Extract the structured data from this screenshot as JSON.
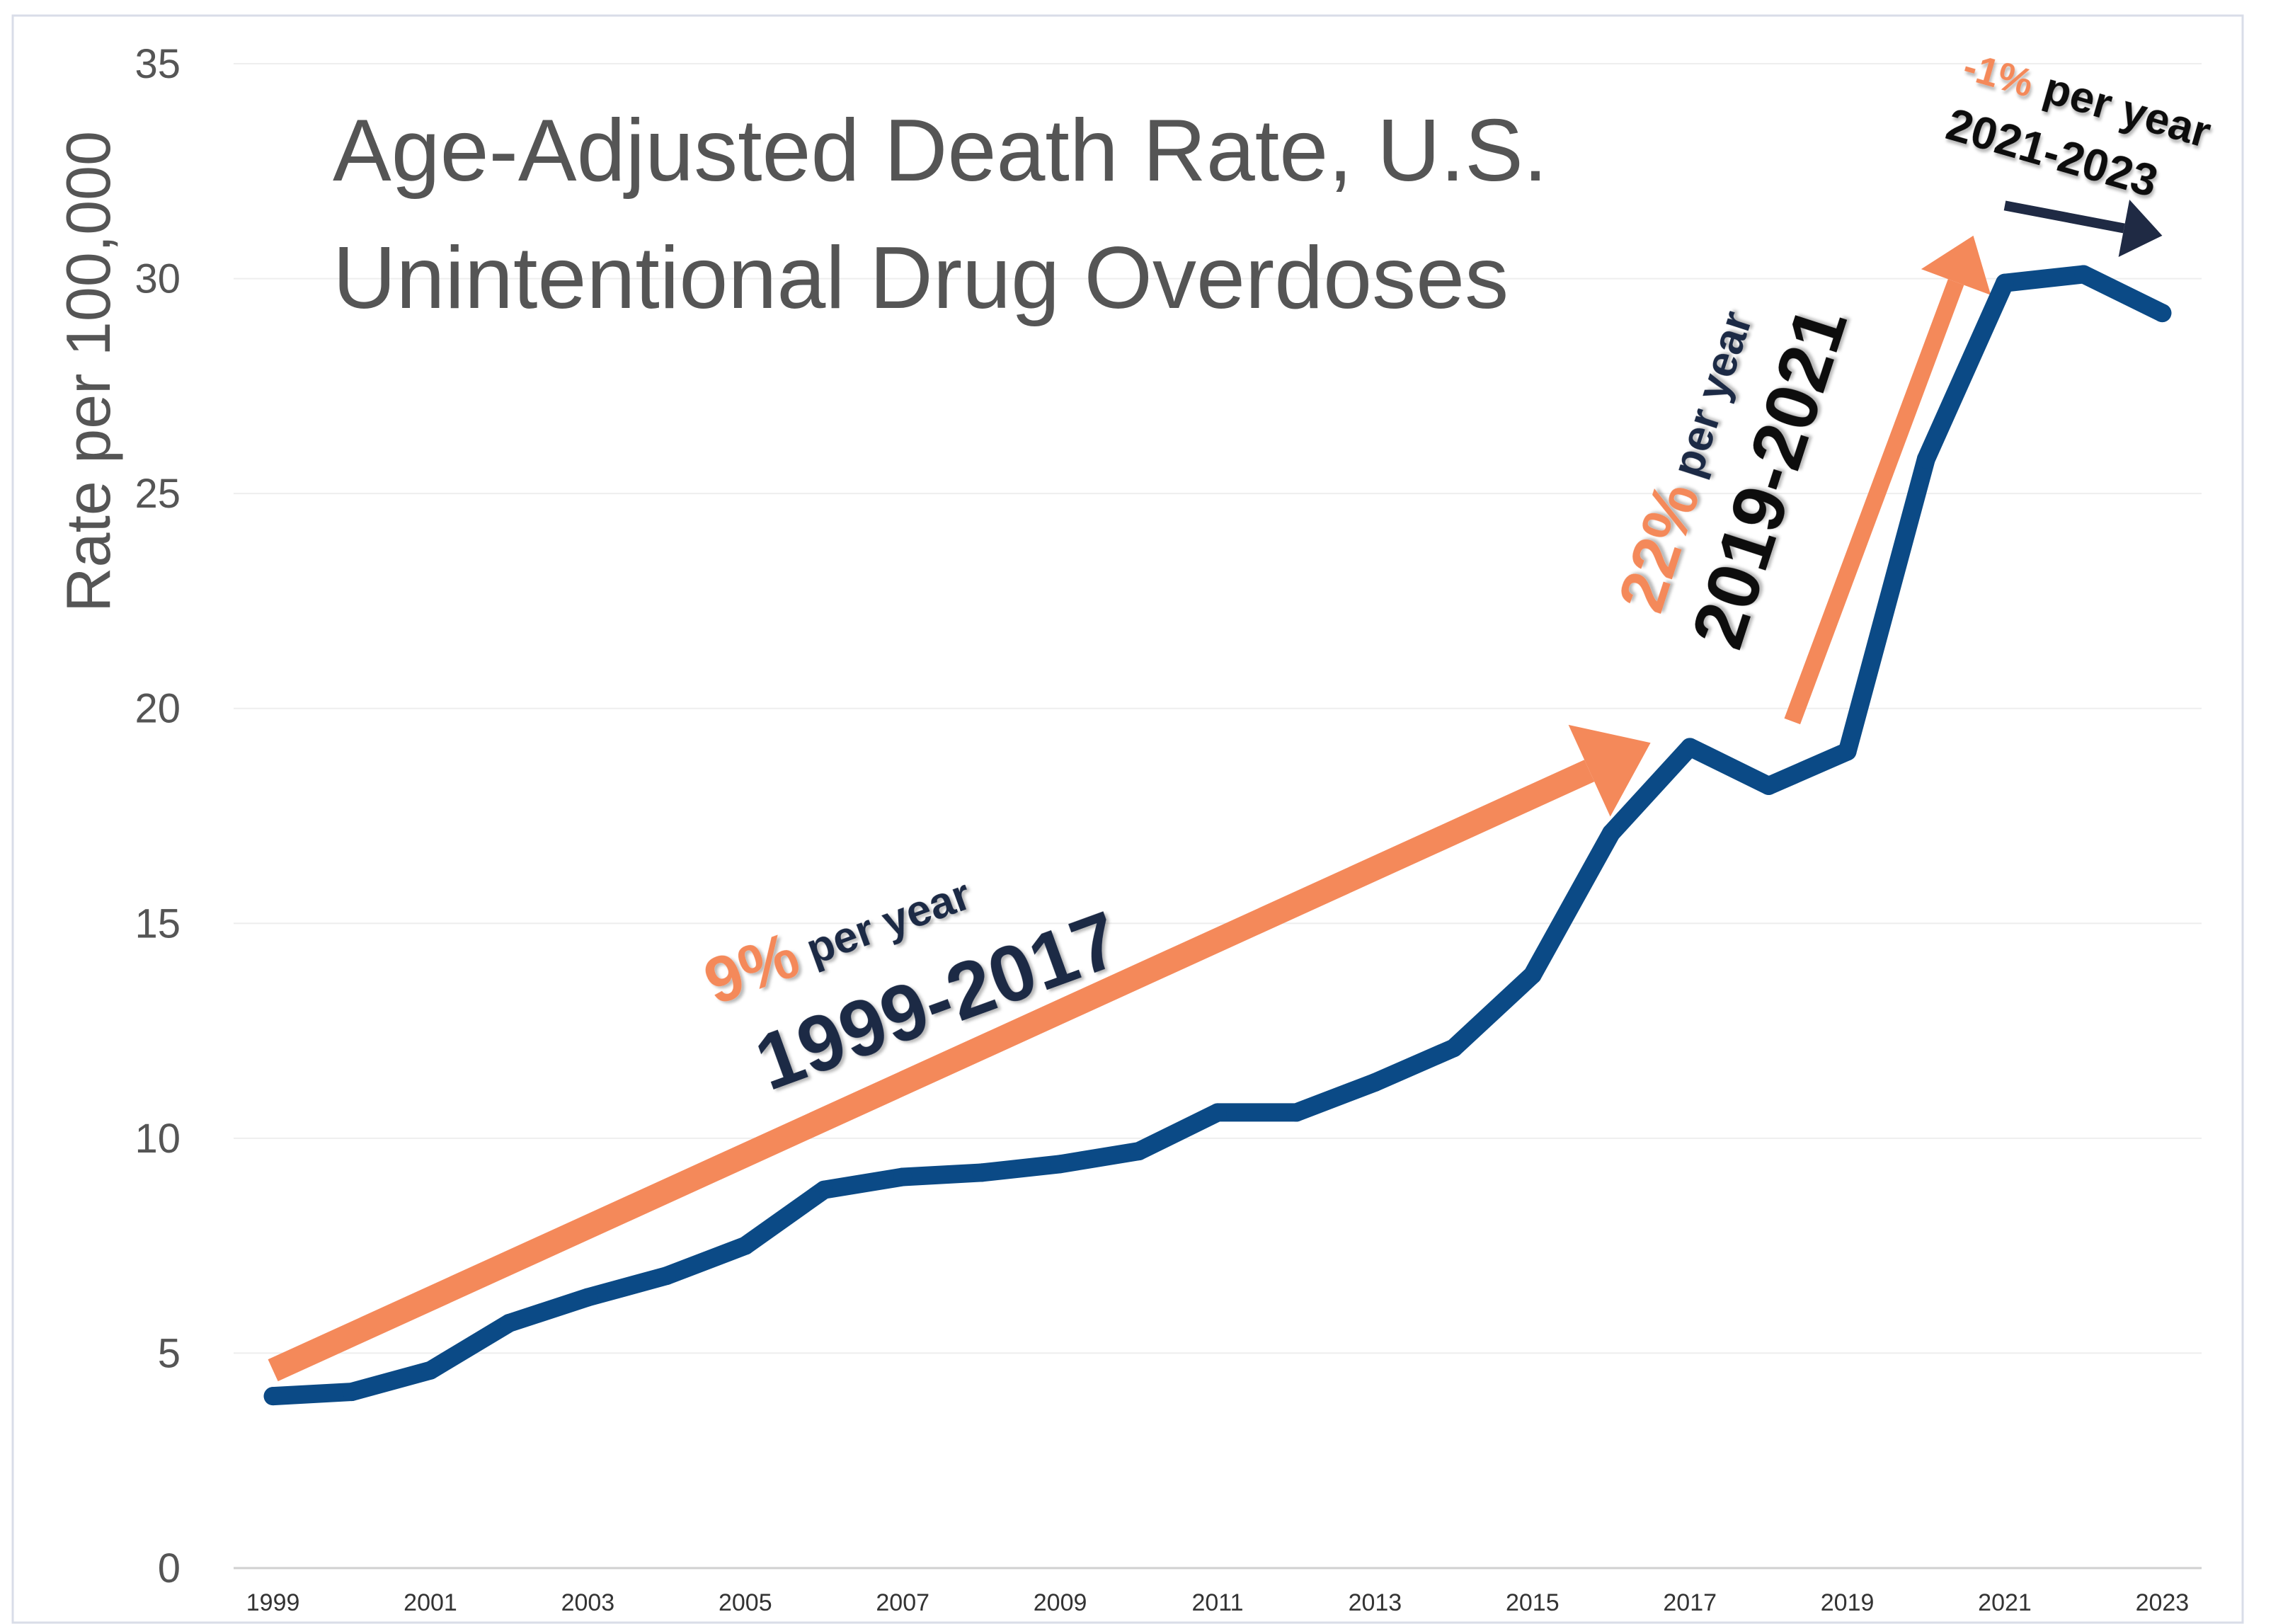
{
  "chart_data": {
    "type": "line",
    "title": "Age-Adjusted Death Rate, U.S.",
    "subtitle": "Unintentional Drug Overdoses",
    "xlabel": "",
    "ylabel": "Rate per 100,000",
    "ylim": [
      0,
      35
    ],
    "yticks": [
      "0",
      "5",
      "10",
      "15",
      "20",
      "25",
      "30",
      "35"
    ],
    "xticks": [
      "1999",
      "2001",
      "2003",
      "2005",
      "2007",
      "2009",
      "2011",
      "2013",
      "2015",
      "2017",
      "2019",
      "2021",
      "2023"
    ],
    "grid": true,
    "colors": {
      "line": "#0b4a86",
      "trend_orange": "#f4895a",
      "trend_navy": "#1f2a44"
    },
    "series": [
      {
        "x": [
          1999,
          2000,
          2001,
          2002,
          2003,
          2004,
          2005,
          2006,
          2007,
          2008,
          2009,
          2010,
          2011,
          2012,
          2013,
          2014,
          2015,
          2016,
          2017,
          2018,
          2019,
          2020,
          2021,
          2022,
          2023
        ],
        "values": [
          4.0,
          4.1,
          4.6,
          5.7,
          6.3,
          6.8,
          7.5,
          8.8,
          9.1,
          9.2,
          9.4,
          9.7,
          10.6,
          10.6,
          11.3,
          12.1,
          13.8,
          17.1,
          19.1,
          18.2,
          19.0,
          25.8,
          29.9,
          30.1,
          29.2
        ]
      }
    ],
    "annotations": [
      {
        "percent": "9%",
        "per": "per year",
        "years": "1999-2017",
        "from": [
          1999,
          4.6
        ],
        "to": [
          2016.5,
          19.2
        ]
      },
      {
        "percent": "22%",
        "per": "per year",
        "years": "2019-2021",
        "from": [
          2018.3,
          19.7
        ],
        "to": [
          2020.6,
          31.0
        ]
      },
      {
        "percent": "-1%",
        "per": "per year",
        "years": "2021-2023",
        "from": [
          2021,
          31.7
        ],
        "to": [
          2023,
          31.0
        ]
      }
    ]
  }
}
